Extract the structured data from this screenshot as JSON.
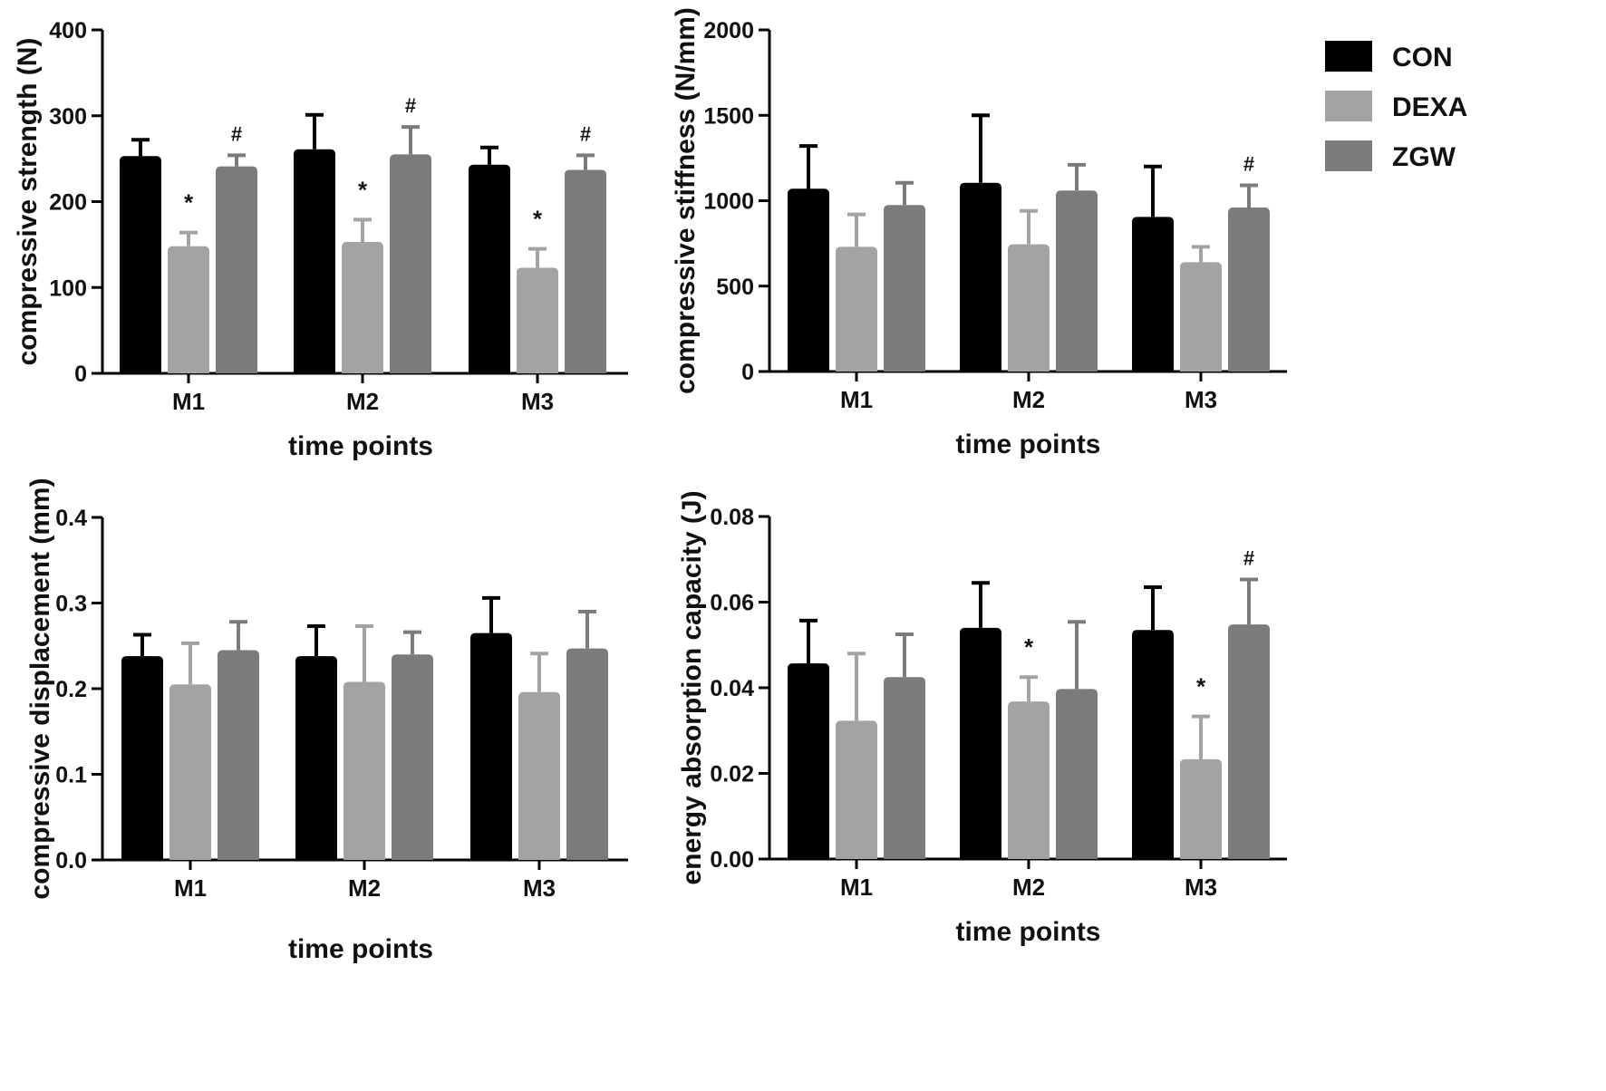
{
  "legend": {
    "entries": [
      {
        "name": "CON",
        "color": "#000000"
      },
      {
        "name": "DEXA",
        "color": "#a3a3a6"
      },
      {
        "name": "ZGW",
        "color": "#7b7b7d"
      }
    ]
  },
  "chart_data": [
    {
      "id": "compressive-strength",
      "type": "bar",
      "ylabel": "compressive strength (N)",
      "xlabel": "time points",
      "categories": [
        "M1",
        "M2",
        "M3"
      ],
      "ylim": [
        0,
        400
      ],
      "yticks": [
        0,
        100,
        200,
        300,
        400
      ],
      "ytick_labels": [
        "0",
        "100",
        "200",
        "300",
        "400"
      ],
      "series": [
        {
          "name": "CON",
          "values": [
            253,
            261,
            243
          ],
          "errors": [
            19,
            40,
            20
          ],
          "marks": [
            "",
            "",
            ""
          ]
        },
        {
          "name": "DEXA",
          "values": [
            148,
            153,
            123
          ],
          "errors": [
            16,
            26,
            22
          ],
          "marks": [
            "*",
            "*",
            "*"
          ]
        },
        {
          "name": "ZGW",
          "values": [
            241,
            255,
            237
          ],
          "errors": [
            13,
            32,
            17
          ],
          "marks": [
            "#",
            "#",
            "#"
          ]
        }
      ]
    },
    {
      "id": "compressive-stiffness",
      "type": "bar",
      "ylabel": "compressive stiffness (N/mm)",
      "xlabel": "time points",
      "categories": [
        "M1",
        "M2",
        "M3"
      ],
      "ylim": [
        0,
        2000
      ],
      "yticks": [
        0,
        500,
        1000,
        1500,
        2000
      ],
      "ytick_labels": [
        "0",
        "500",
        "1000",
        "1500",
        "2000"
      ],
      "series": [
        {
          "name": "CON",
          "values": [
            1070,
            1105,
            905
          ],
          "errors": [
            250,
            395,
            295
          ],
          "marks": [
            "",
            "",
            ""
          ]
        },
        {
          "name": "DEXA",
          "values": [
            730,
            745,
            640
          ],
          "errors": [
            190,
            195,
            90
          ],
          "marks": [
            "",
            "",
            ""
          ]
        },
        {
          "name": "ZGW",
          "values": [
            975,
            1060,
            960
          ],
          "errors": [
            130,
            150,
            130
          ],
          "marks": [
            "",
            "",
            "#"
          ]
        }
      ]
    },
    {
      "id": "compressive-displacement",
      "type": "bar",
      "ylabel": "compressive displacement (mm)",
      "xlabel": "time points",
      "categories": [
        "M1",
        "M2",
        "M3"
      ],
      "ylim": [
        0.0,
        0.4
      ],
      "yticks": [
        0.0,
        0.1,
        0.2,
        0.3,
        0.4
      ],
      "ytick_labels": [
        "0.0",
        "0.1",
        "0.2",
        "0.3",
        "0.4"
      ],
      "series": [
        {
          "name": "CON",
          "values": [
            0.238,
            0.238,
            0.265
          ],
          "errors": [
            0.025,
            0.035,
            0.041
          ],
          "marks": [
            "",
            "",
            ""
          ]
        },
        {
          "name": "DEXA",
          "values": [
            0.205,
            0.208,
            0.196
          ],
          "errors": [
            0.048,
            0.065,
            0.045
          ],
          "marks": [
            "",
            "",
            ""
          ]
        },
        {
          "name": "ZGW",
          "values": [
            0.245,
            0.24,
            0.247
          ],
          "errors": [
            0.033,
            0.026,
            0.043
          ],
          "marks": [
            "",
            "",
            ""
          ]
        }
      ]
    },
    {
      "id": "energy-absorption-capacity",
      "type": "bar",
      "ylabel": "energy absorption capacity (J)",
      "xlabel": "time points",
      "categories": [
        "M1",
        "M2",
        "M3"
      ],
      "ylim": [
        0.0,
        0.08
      ],
      "yticks": [
        0.0,
        0.02,
        0.04,
        0.06,
        0.08
      ],
      "ytick_labels": [
        "0.00",
        "0.02",
        "0.04",
        "0.06",
        "0.08"
      ],
      "series": [
        {
          "name": "CON",
          "values": [
            0.0457,
            0.054,
            0.0535
          ],
          "errors": [
            0.01,
            0.0105,
            0.01
          ],
          "marks": [
            "",
            "",
            ""
          ]
        },
        {
          "name": "DEXA",
          "values": [
            0.0323,
            0.0368,
            0.0233
          ],
          "errors": [
            0.0157,
            0.0057,
            0.01
          ],
          "marks": [
            "",
            "*",
            "*"
          ]
        },
        {
          "name": "ZGW",
          "values": [
            0.0425,
            0.0397,
            0.0548
          ],
          "errors": [
            0.01,
            0.0157,
            0.0105
          ],
          "marks": [
            "",
            "",
            "#"
          ]
        }
      ]
    }
  ]
}
